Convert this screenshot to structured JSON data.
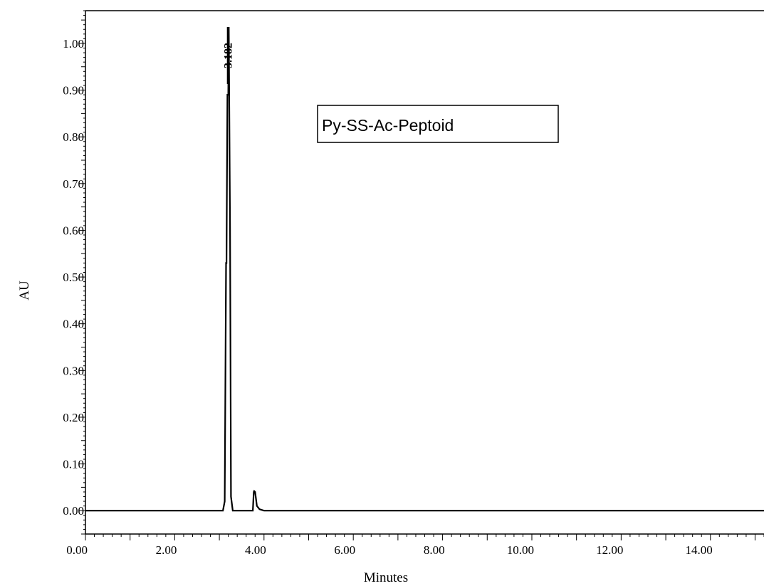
{
  "chart_data": {
    "type": "line",
    "title": "",
    "xlabel": "Minutes",
    "ylabel": "AU",
    "xlim": [
      0.0,
      15.2
    ],
    "ylim": [
      -0.05,
      1.07
    ],
    "x_ticks": [
      0.0,
      2.0,
      4.0,
      6.0,
      8.0,
      10.0,
      12.0,
      14.0
    ],
    "x_tick_labels": [
      "0.00",
      "2.00",
      "4.00",
      "6.00",
      "8.00",
      "10.00",
      "12.00",
      "14.00"
    ],
    "y_ticks": [
      0.0,
      0.1,
      0.2,
      0.3,
      0.4,
      0.5,
      0.6,
      0.7,
      0.8,
      0.9,
      1.0
    ],
    "y_tick_labels": [
      "0.00",
      "0.10",
      "0.20",
      "0.30",
      "0.40",
      "0.50",
      "0.60",
      "0.70",
      "0.80",
      "0.90",
      "1.00"
    ],
    "grid": false,
    "legend": {
      "text": "Py-SS-Ac-Peptoid",
      "placement": "top-center"
    },
    "peak_annotations": [
      {
        "x": 3.182,
        "label": "3.182",
        "y": 1.035
      }
    ],
    "series": [
      {
        "name": "Py-SS-Ac-Peptoid",
        "x": [
          0.0,
          3.0,
          3.08,
          3.12,
          3.15,
          3.16,
          3.18,
          3.2,
          3.21,
          3.22,
          3.24,
          3.26,
          3.3,
          3.35,
          3.5,
          3.6,
          3.75,
          3.77,
          3.78,
          3.8,
          3.84,
          3.9,
          4.0,
          4.2,
          15.2
        ],
        "y": [
          0.0,
          0.0,
          0.0,
          0.02,
          0.53,
          0.53,
          0.89,
          0.89,
          1.035,
          0.89,
          0.6,
          0.03,
          0.0,
          0.0,
          0.0,
          0.0,
          0.0,
          0.04,
          0.042,
          0.04,
          0.01,
          0.003,
          0.0,
          0.0,
          0.0
        ]
      }
    ]
  }
}
